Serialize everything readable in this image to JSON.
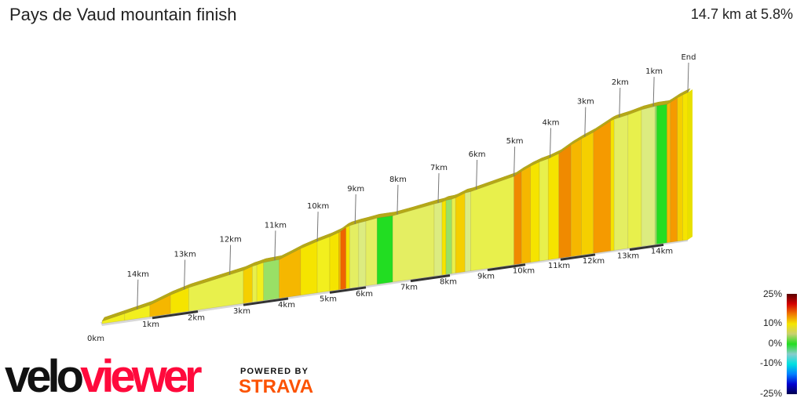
{
  "header": {
    "title": "Pays de Vaud mountain finish",
    "stats": "14.7 km at 5.8%"
  },
  "logo": {
    "velo": "velo",
    "viewer": "viewer",
    "powered_by": "POWERED BY",
    "strava": "STRAVA"
  },
  "legend": {
    "labels": [
      "25%",
      "10%",
      "0%",
      "-10%",
      "-25%"
    ],
    "colors": [
      "#5a0000",
      "#d40000",
      "#f07800",
      "#f5e600",
      "#c8d070",
      "#22dd22",
      "#88cccc",
      "#00e0e0",
      "#0080ff",
      "#0000d0",
      "#000050"
    ]
  },
  "chart_data": {
    "type": "area",
    "title": "Pays de Vaud mountain finish",
    "total_distance_km": 14.7,
    "avg_gradient_pct": 5.8,
    "distance_ticks": [
      "0km",
      "1km",
      "2km",
      "3km",
      "4km",
      "5km",
      "6km",
      "7km",
      "8km",
      "9km",
      "10km",
      "11km",
      "12km",
      "13km",
      "14km"
    ],
    "remaining_markers": [
      "14km",
      "13km",
      "12km",
      "11km",
      "10km",
      "9km",
      "8km",
      "7km",
      "6km",
      "5km",
      "4km",
      "3km",
      "2km",
      "1km",
      "End"
    ],
    "gradient_colors": {
      "0": "#22dd22",
      "1": "#99e066",
      "2": "#dcec80",
      "3": "#e4ee62",
      "4": "#e8f04c",
      "5": "#f2ef1e",
      "6": "#f5e400",
      "7": "#f5cf00",
      "8": "#f5b700",
      "9": "#f59a00",
      "10": "#f08a00",
      "11": "#ee6400"
    },
    "segments_km_gradient": [
      [
        0,
        0.45,
        5
      ],
      [
        0.45,
        0.95,
        5
      ],
      [
        0.95,
        1.4,
        8
      ],
      [
        1.4,
        1.8,
        6
      ],
      [
        1.8,
        3.0,
        4
      ],
      [
        3.0,
        3.2,
        7
      ],
      [
        3.2,
        3.3,
        4
      ],
      [
        3.3,
        3.45,
        5
      ],
      [
        3.45,
        3.8,
        1
      ],
      [
        3.8,
        4.3,
        8
      ],
      [
        4.3,
        4.7,
        6
      ],
      [
        4.7,
        5.0,
        5
      ],
      [
        5.0,
        5.25,
        6
      ],
      [
        5.25,
        5.3,
        8
      ],
      [
        5.3,
        5.45,
        11
      ],
      [
        5.45,
        5.55,
        6
      ],
      [
        5.55,
        5.8,
        3
      ],
      [
        5.8,
        6.0,
        2
      ],
      [
        6.0,
        6.25,
        3
      ],
      [
        6.25,
        6.6,
        0
      ],
      [
        6.6,
        7.6,
        3
      ],
      [
        7.6,
        7.8,
        2
      ],
      [
        7.8,
        7.9,
        6
      ],
      [
        7.9,
        8.05,
        1
      ],
      [
        8.05,
        8.15,
        4
      ],
      [
        8.15,
        8.4,
        7
      ],
      [
        8.4,
        8.55,
        2
      ],
      [
        8.55,
        9.7,
        4
      ],
      [
        9.7,
        9.9,
        10
      ],
      [
        9.9,
        10.15,
        8
      ],
      [
        10.15,
        10.4,
        6
      ],
      [
        10.4,
        10.65,
        4
      ],
      [
        10.65,
        10.95,
        6
      ],
      [
        10.95,
        11.3,
        10
      ],
      [
        11.3,
        11.6,
        8
      ],
      [
        11.6,
        11.95,
        7
      ],
      [
        11.95,
        12.45,
        9
      ],
      [
        12.45,
        12.55,
        6
      ],
      [
        12.55,
        12.95,
        3
      ],
      [
        12.95,
        13.35,
        4
      ],
      [
        13.35,
        13.75,
        2
      ],
      [
        13.75,
        13.8,
        1
      ],
      [
        13.8,
        14.1,
        0
      ],
      [
        14.1,
        14.2,
        8
      ],
      [
        14.2,
        14.4,
        9
      ],
      [
        14.4,
        14.55,
        7
      ],
      [
        14.55,
        14.7,
        6
      ]
    ]
  }
}
